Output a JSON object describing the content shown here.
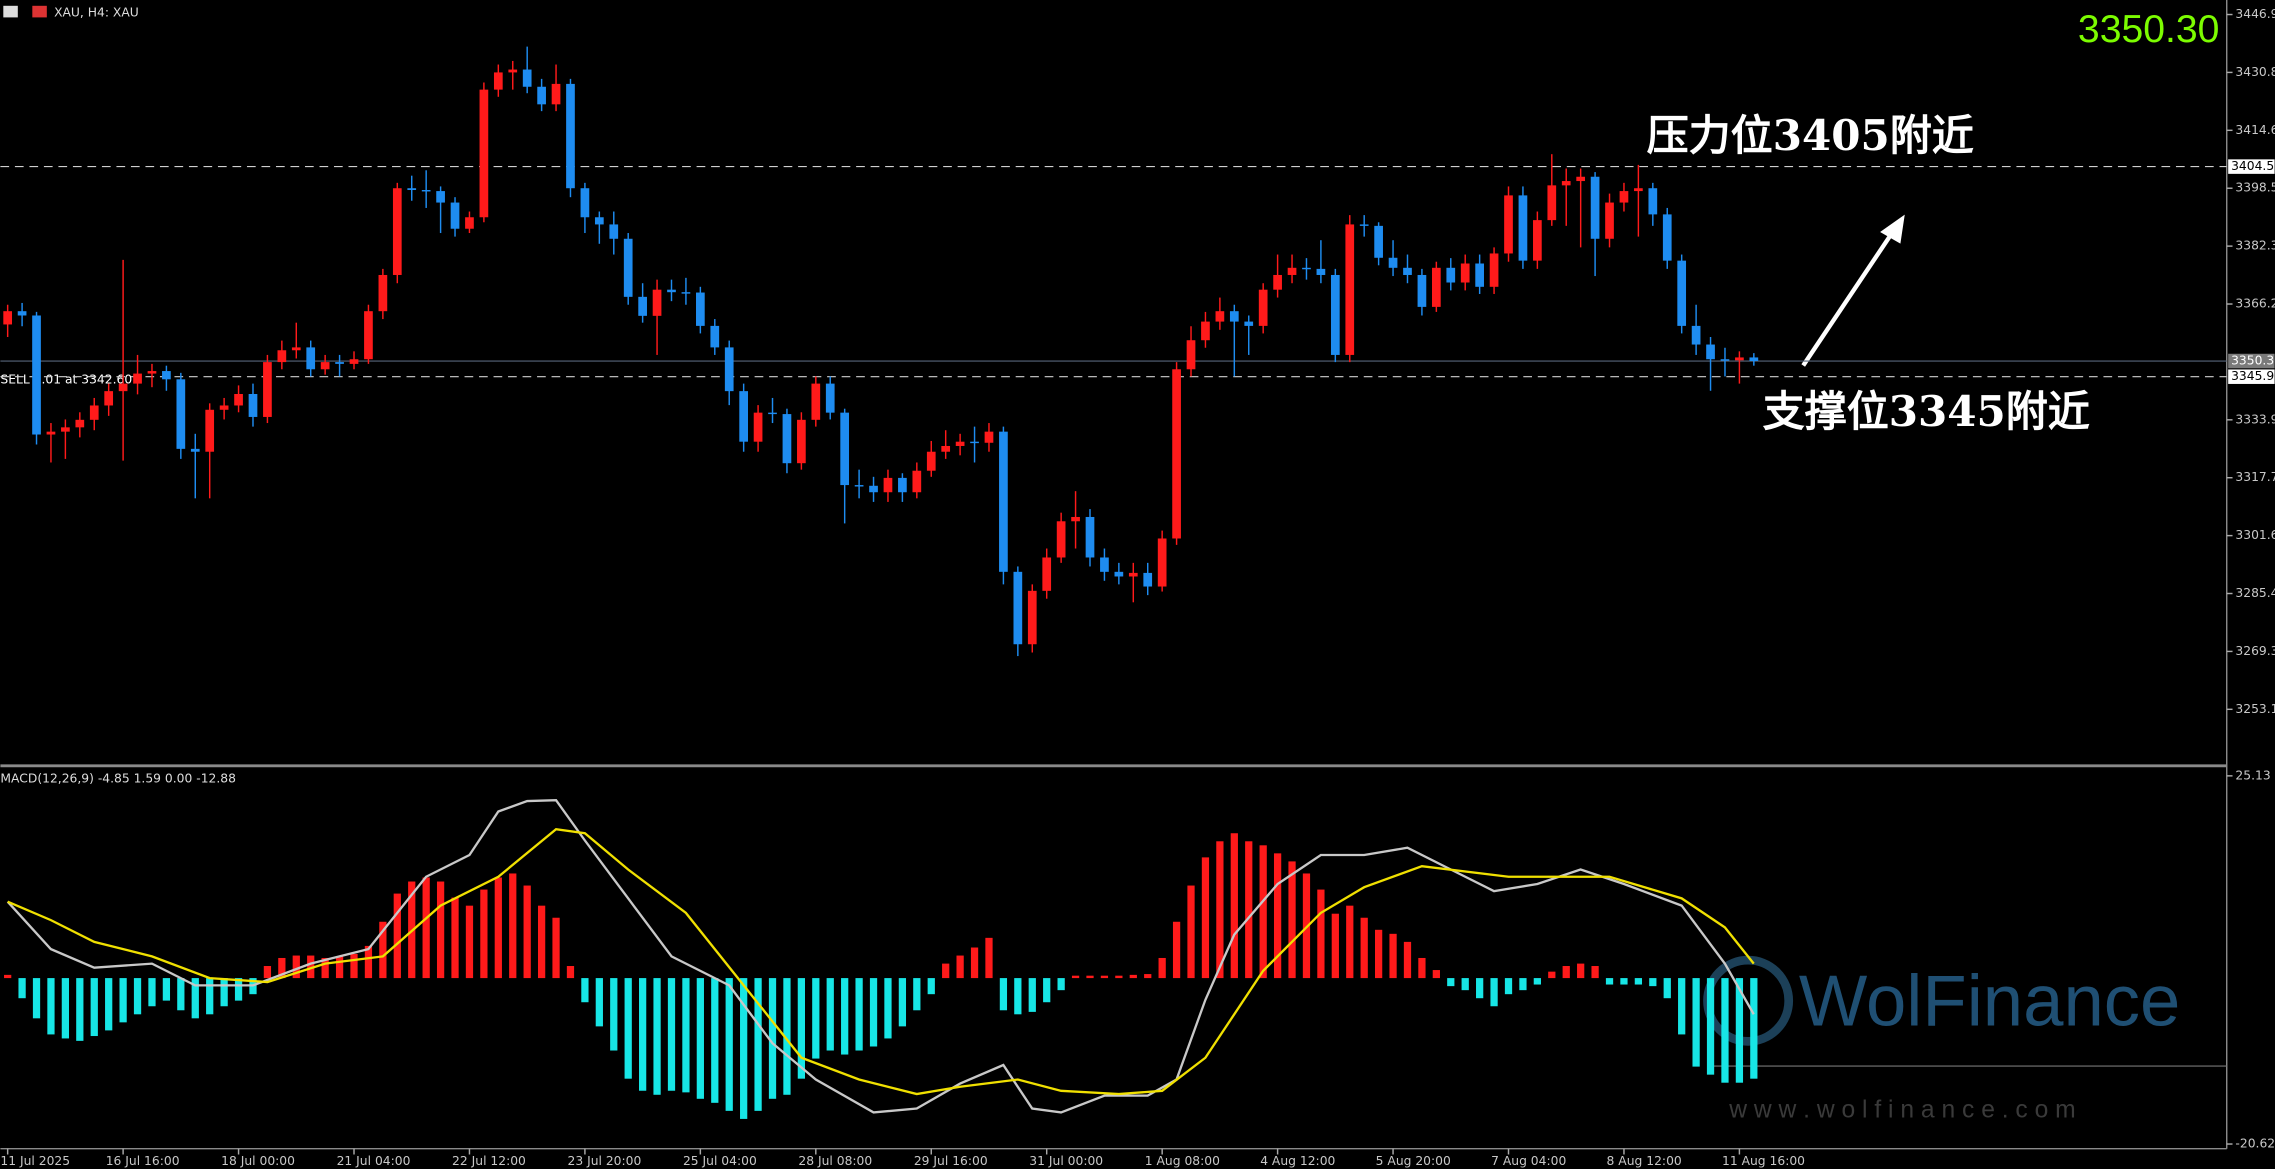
{
  "chart_data": [
    {
      "type": "candlestick",
      "title": "XAU, H4:  XAU",
      "bid": {
        "value": 3350.3,
        "label": "3350.30"
      },
      "order_label": "SELL 1.01 at 3342.60",
      "colors": {
        "up": "#ff1a1a",
        "down": "#1e8cf0"
      },
      "ylim": [
        3237.8,
        3451.0
      ],
      "yticks": [
        3446.95,
        {
          "value": 3430.8,
          "label": "3430.80"
        },
        3414.65,
        {
          "value": 3398.5,
          "label": "3398.50"
        },
        3382.35,
        {
          "value": 3366.2,
          "label": "3366.20"
        },
        {
          "value": 3333.9,
          "label": "3333.90"
        },
        3317.75,
        {
          "value": 3301.6,
          "label": "3301.60"
        },
        3285.45,
        {
          "value": 3269.3,
          "label": "3269.30"
        },
        3253.15
      ],
      "hlines": [
        {
          "value": 3404.53,
          "style": "dashed"
        },
        {
          "value": 3350.3,
          "label": "3350.30",
          "style": "solid"
        },
        {
          "value": 3345.93,
          "style": "dashed"
        }
      ],
      "annotations": [
        {
          "text": "压力位3405附近"
        },
        {
          "text": "支撑位3345附近"
        }
      ],
      "categories": [
        "11 Jul 2025",
        null,
        null,
        null,
        null,
        null,
        null,
        null,
        "16 Jul 16:00",
        null,
        null,
        null,
        null,
        null,
        null,
        null,
        "18 Jul 00:00",
        null,
        null,
        null,
        null,
        null,
        null,
        null,
        "21 Jul 04:00",
        null,
        null,
        null,
        null,
        null,
        null,
        null,
        "22 Jul 12:00",
        null,
        null,
        null,
        null,
        null,
        null,
        null,
        "23 Jul 20:00",
        null,
        null,
        null,
        null,
        null,
        null,
        null,
        "25 Jul 04:00",
        null,
        null,
        null,
        null,
        null,
        null,
        null,
        "28 Jul 08:00",
        null,
        null,
        null,
        null,
        null,
        null,
        null,
        "29 Jul 16:00",
        null,
        null,
        null,
        null,
        null,
        null,
        null,
        "31 Jul 00:00",
        null,
        null,
        null,
        null,
        null,
        null,
        null,
        "1 Aug 08:00",
        null,
        null,
        null,
        null,
        null,
        null,
        null,
        "4 Aug 12:00",
        null,
        null,
        null,
        null,
        null,
        null,
        null,
        "5 Aug 20:00",
        null,
        null,
        null,
        null,
        null,
        null,
        null,
        "7 Aug 04:00",
        null,
        null,
        null,
        null,
        null,
        null,
        null,
        "8 Aug 12:00",
        null,
        null,
        null,
        null,
        null,
        null,
        null,
        "11 Aug 16:00",
        null
      ],
      "ohlc": [
        [
          3360.5,
          3366.0,
          3357.0,
          3364.2
        ],
        [
          3364.2,
          3366.5,
          3360.0,
          3363.0
        ],
        [
          3363.0,
          3364.0,
          3327.0,
          3329.8
        ],
        [
          3329.8,
          3333.0,
          3322.0,
          3330.6
        ],
        [
          3330.6,
          3334.0,
          3323.0,
          3331.8
        ],
        [
          3331.8,
          3336.0,
          3329.0,
          3333.9
        ],
        [
          3333.9,
          3340.0,
          3331.0,
          3337.9
        ],
        [
          3337.9,
          3344.0,
          3335.0,
          3341.9
        ],
        [
          3341.9,
          3378.5,
          3322.5,
          3344.0
        ],
        [
          3344.0,
          3352.0,
          3341.0,
          3346.8
        ],
        [
          3346.8,
          3349.5,
          3343.0,
          3347.5
        ],
        [
          3347.5,
          3349.0,
          3342.0,
          3345.2
        ],
        [
          3345.2,
          3347.0,
          3323.0,
          3325.8
        ],
        [
          3325.8,
          3330.0,
          3312.0,
          3325.0
        ],
        [
          3325.0,
          3338.5,
          3312.0,
          3336.7
        ],
        [
          3336.7,
          3340.0,
          3334.0,
          3337.9
        ],
        [
          3337.9,
          3343.5,
          3336.0,
          3341.1
        ],
        [
          3341.1,
          3344.0,
          3332.0,
          3334.7
        ],
        [
          3334.7,
          3352.0,
          3333.0,
          3350.0
        ],
        [
          3350.0,
          3356.0,
          3348.0,
          3353.3
        ],
        [
          3353.3,
          3361.0,
          3351.0,
          3354.1
        ],
        [
          3354.1,
          3356.0,
          3346.0,
          3348.0
        ],
        [
          3348.0,
          3352.0,
          3346.5,
          3350.0
        ],
        [
          3350.0,
          3352.0,
          3346.0,
          3349.5
        ],
        [
          3349.5,
          3353.0,
          3348.0,
          3350.8
        ],
        [
          3350.8,
          3366.0,
          3349.5,
          3364.2
        ],
        [
          3364.2,
          3376.0,
          3362.0,
          3374.3
        ],
        [
          3374.3,
          3400.0,
          3372.0,
          3398.5
        ],
        [
          3398.5,
          3402.0,
          3395.0,
          3398.0
        ],
        [
          3398.0,
          3403.5,
          3393.0,
          3397.7
        ],
        [
          3397.7,
          3399.0,
          3386.0,
          3394.5
        ],
        [
          3394.5,
          3396.0,
          3385.0,
          3387.2
        ],
        [
          3387.2,
          3392.0,
          3386.0,
          3390.4
        ],
        [
          3390.4,
          3428.0,
          3389.0,
          3426.0
        ],
        [
          3426.0,
          3433.0,
          3424.0,
          3430.8
        ],
        [
          3430.8,
          3434.0,
          3426.0,
          3431.6
        ],
        [
          3431.6,
          3438.0,
          3425.0,
          3426.8
        ],
        [
          3426.8,
          3429.0,
          3420.0,
          3421.9
        ],
        [
          3421.9,
          3433.0,
          3420.0,
          3427.6
        ],
        [
          3427.6,
          3429.0,
          3396.0,
          3398.5
        ],
        [
          3398.5,
          3400.0,
          3386.0,
          3390.4
        ],
        [
          3390.4,
          3392.0,
          3383.0,
          3388.4
        ],
        [
          3388.4,
          3392.0,
          3380.0,
          3384.4
        ],
        [
          3384.4,
          3386.0,
          3366.0,
          3368.2
        ],
        [
          3368.2,
          3372.0,
          3361.0,
          3362.9
        ],
        [
          3362.9,
          3373.0,
          3352.0,
          3370.2
        ],
        [
          3370.2,
          3373.0,
          3367.0,
          3369.5
        ],
        [
          3369.5,
          3373.5,
          3366.0,
          3369.4
        ],
        [
          3369.4,
          3371.0,
          3358.0,
          3360.1
        ],
        [
          3360.1,
          3362.0,
          3352.0,
          3354.1
        ],
        [
          3354.1,
          3356.0,
          3338.0,
          3341.9
        ],
        [
          3341.9,
          3344.0,
          3325.0,
          3327.8
        ],
        [
          3327.8,
          3338.0,
          3325.0,
          3335.9
        ],
        [
          3335.9,
          3340.0,
          3333.0,
          3335.5
        ],
        [
          3335.5,
          3337.0,
          3319.0,
          3321.8
        ],
        [
          3321.8,
          3336.0,
          3320.0,
          3333.9
        ],
        [
          3333.9,
          3346.0,
          3332.0,
          3344.0
        ],
        [
          3344.0,
          3346.0,
          3334.0,
          3335.9
        ],
        [
          3335.9,
          3337.0,
          3305.0,
          3315.7
        ],
        [
          3315.7,
          3320.0,
          3312.0,
          3315.5
        ],
        [
          3315.5,
          3318.0,
          3311.0,
          3313.7
        ],
        [
          3313.7,
          3320.0,
          3311.0,
          3317.7
        ],
        [
          3317.7,
          3319.0,
          3311.0,
          3313.7
        ],
        [
          3313.7,
          3322.0,
          3312.0,
          3319.7
        ],
        [
          3319.7,
          3328.0,
          3318.0,
          3325.0
        ],
        [
          3325.0,
          3331.0,
          3323.0,
          3326.6
        ],
        [
          3326.6,
          3330.0,
          3324.0,
          3327.8
        ],
        [
          3327.8,
          3332.0,
          3322.0,
          3327.5
        ],
        [
          3327.5,
          3333.0,
          3325.0,
          3330.6
        ],
        [
          3330.6,
          3332.0,
          3288.0,
          3291.5
        ],
        [
          3291.5,
          3293.0,
          3268.0,
          3271.3
        ],
        [
          3271.3,
          3288.0,
          3269.0,
          3286.2
        ],
        [
          3286.2,
          3298.0,
          3284.0,
          3295.5
        ],
        [
          3295.5,
          3308.0,
          3294.0,
          3305.6
        ],
        [
          3305.6,
          3314.0,
          3298.0,
          3306.8
        ],
        [
          3306.8,
          3309.0,
          3293.0,
          3295.5
        ],
        [
          3295.5,
          3298.0,
          3289.0,
          3291.5
        ],
        [
          3291.5,
          3294.0,
          3288.0,
          3290.2
        ],
        [
          3290.2,
          3294.0,
          3283.0,
          3291.2
        ],
        [
          3291.2,
          3294.0,
          3285.0,
          3287.4
        ],
        [
          3287.4,
          3303.0,
          3286.0,
          3300.8
        ],
        [
          3300.8,
          3350.0,
          3299.0,
          3348.0
        ],
        [
          3348.0,
          3360.0,
          3346.0,
          3356.1
        ],
        [
          3356.1,
          3364.0,
          3354.0,
          3361.3
        ],
        [
          3361.3,
          3368.0,
          3359.0,
          3364.2
        ],
        [
          3364.2,
          3366.0,
          3346.0,
          3361.3
        ],
        [
          3361.3,
          3363.0,
          3352.0,
          3360.1
        ],
        [
          3360.1,
          3372.0,
          3358.0,
          3370.2
        ],
        [
          3370.2,
          3380.0,
          3368.0,
          3374.3
        ],
        [
          3374.3,
          3380.0,
          3372.0,
          3376.3
        ],
        [
          3376.3,
          3379.0,
          3373.0,
          3376.0
        ],
        [
          3376.0,
          3384.0,
          3372.0,
          3374.3
        ],
        [
          3374.3,
          3376.0,
          3350.0,
          3352.0
        ],
        [
          3352.0,
          3391.0,
          3350.0,
          3388.4
        ],
        [
          3388.4,
          3391.0,
          3385.0,
          3388.0
        ],
        [
          3388.0,
          3389.0,
          3377.0,
          3379.1
        ],
        [
          3379.1,
          3384.0,
          3374.0,
          3376.3
        ],
        [
          3376.3,
          3380.0,
          3372.0,
          3374.3
        ],
        [
          3374.3,
          3376.0,
          3363.0,
          3365.4
        ],
        [
          3365.4,
          3378.0,
          3364.0,
          3376.3
        ],
        [
          3376.3,
          3379.0,
          3370.0,
          3372.2
        ],
        [
          3372.2,
          3380.0,
          3370.0,
          3377.5
        ],
        [
          3377.5,
          3380.0,
          3369.0,
          3371.0
        ],
        [
          3371.0,
          3382.0,
          3369.0,
          3380.3
        ],
        [
          3380.3,
          3399.0,
          3378.0,
          3396.5
        ],
        [
          3396.5,
          3399.0,
          3376.0,
          3378.3
        ],
        [
          3378.3,
          3392.0,
          3376.0,
          3389.6
        ],
        [
          3389.6,
          3408.0,
          3388.0,
          3399.3
        ],
        [
          3399.3,
          3404.0,
          3388.0,
          3400.5
        ],
        [
          3400.5,
          3404.0,
          3382.0,
          3401.7
        ],
        [
          3401.7,
          3403.0,
          3374.0,
          3384.4
        ],
        [
          3384.4,
          3397.0,
          3382.0,
          3394.5
        ],
        [
          3394.5,
          3400.0,
          3392.0,
          3397.7
        ],
        [
          3397.7,
          3405.0,
          3385.0,
          3398.5
        ],
        [
          3398.5,
          3400.0,
          3388.0,
          3391.2
        ],
        [
          3391.2,
          3393.0,
          3376.0,
          3378.3
        ],
        [
          3378.3,
          3380.0,
          3358.0,
          3360.1
        ],
        [
          3360.1,
          3366.0,
          3352.0,
          3354.9
        ],
        [
          3354.9,
          3357.0,
          3342.0,
          3350.8
        ],
        [
          3350.8,
          3354.0,
          3346.0,
          3350.5
        ],
        [
          3350.5,
          3353.0,
          3344.0,
          3351.3
        ],
        [
          3351.3,
          3352.5,
          3349.0,
          3350.3
        ]
      ]
    },
    {
      "type": "macd",
      "title": "MACD(12,26,9) -4.85 1.59 0.00 -12.88",
      "ylim": [
        -21.2,
        26.2
      ],
      "yticks": [
        25.13,
        -20.62
      ],
      "colors": {
        "up": "#ff1a1a",
        "down": "#17e6e6"
      },
      "values": [
        0.4,
        -2.5,
        -5,
        -7,
        -7.5,
        -7.8,
        -7.2,
        -6.5,
        -5.5,
        -4.5,
        -3.5,
        -2.8,
        -4,
        -5,
        -4.5,
        -3.5,
        -2.8,
        -2,
        1.5,
        2.5,
        2.8,
        2.8,
        2.5,
        2.7,
        3,
        4,
        7,
        10.5,
        12,
        12.5,
        12,
        10,
        9,
        11,
        12.5,
        13,
        11.5,
        9,
        7.5,
        1.5,
        -3,
        -6,
        -9,
        -12.5,
        -14,
        -14.5,
        -14,
        -14.2,
        -15,
        -15.5,
        -16.5,
        -17.5,
        -16.5,
        -15,
        -14.5,
        -12.5,
        -10,
        -9,
        -9.5,
        -9,
        -8.5,
        -7.5,
        -6,
        -4,
        -2,
        1.8,
        2.8,
        3.8,
        5,
        -4,
        -4.5,
        -4.2,
        -3,
        -1.5,
        0.3,
        0.3,
        0.3,
        0.3,
        0.4,
        0.5,
        2.5,
        7,
        11.5,
        15,
        17,
        18,
        17,
        16.5,
        15.5,
        14.5,
        13,
        11,
        8,
        9,
        7.5,
        6,
        5.5,
        4.5,
        2.5,
        1,
        -1,
        -1.5,
        -2.5,
        -3.5,
        -2,
        -1.5,
        -0.8,
        0.8,
        1.5,
        1.8,
        1.5,
        -0.8,
        -0.8,
        -0.8,
        -1,
        -2.5,
        -7,
        -11,
        -12,
        -13,
        -13,
        -12.5
      ],
      "series": [
        {
          "color": "#c8c8c8",
          "x": [
            0,
            3,
            6,
            10,
            13,
            17,
            21,
            25,
            29,
            32,
            34,
            36,
            38,
            40,
            43,
            46,
            50,
            53,
            56,
            60,
            63,
            66,
            69,
            71,
            73,
            76,
            79,
            81,
            83,
            85,
            88,
            91,
            94,
            97,
            100,
            103,
            106,
            109,
            112,
            116,
            119,
            121
          ],
          "values": [
            9.5,
            3.6,
            1.3,
            1.8,
            -0.9,
            -0.9,
            1.8,
            3.6,
            12.6,
            15.3,
            20.7,
            22.0,
            22.1,
            17.1,
            9.9,
            2.7,
            -0.9,
            -8.1,
            -12.6,
            -16.7,
            -16.2,
            -13.1,
            -10.8,
            -16.2,
            -16.7,
            -14.6,
            -14.6,
            -12.6,
            -2.7,
            5.4,
            11.7,
            15.3,
            15.3,
            16.2,
            13.5,
            10.8,
            11.7,
            13.5,
            11.7,
            9.0,
            1.8,
            -4.5
          ]
        },
        {
          "color": "#f0e000",
          "x": [
            0,
            3,
            6,
            10,
            14,
            18,
            22,
            26,
            30,
            34,
            38,
            40,
            43,
            47,
            51,
            55,
            59,
            63,
            66,
            70,
            73,
            77,
            80,
            83,
            87,
            91,
            94,
            98,
            104,
            111,
            116,
            119,
            121
          ],
          "values": [
            9.5,
            7.2,
            4.5,
            2.7,
            0,
            -0.5,
            1.8,
            2.7,
            9.0,
            12.6,
            18.5,
            18.0,
            13.5,
            8.1,
            -0.9,
            -9.9,
            -12.6,
            -14.4,
            -13.5,
            -12.6,
            -14.0,
            -14.4,
            -14.0,
            -9.9,
            0.9,
            8.1,
            11.3,
            13.9,
            12.6,
            12.6,
            9.9,
            6.3,
            1.8
          ]
        }
      ]
    }
  ],
  "watermark": {
    "brand": "WolFinance",
    "url": "w w w . w o l f i n a n c e . c o m"
  }
}
